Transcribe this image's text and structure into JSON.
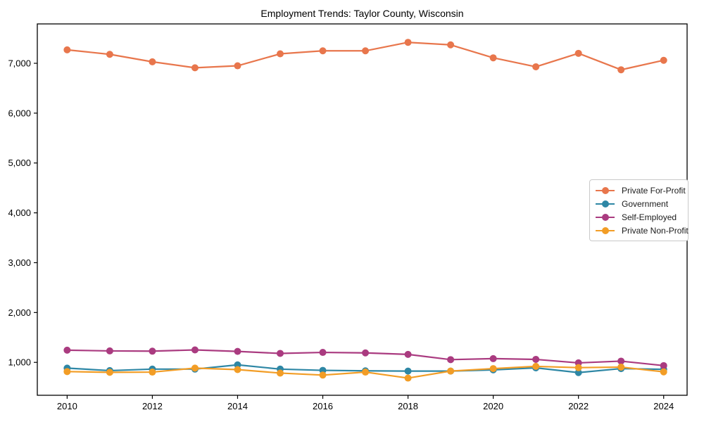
{
  "title": "Employment Trends: Taylor County, Wisconsin",
  "chart_data": {
    "type": "line",
    "title": "Employment Trends: Taylor County, Wisconsin",
    "xlabel": "",
    "ylabel": "",
    "grid": false,
    "legend_position": "center right",
    "x": [
      2010,
      2011,
      2012,
      2013,
      2014,
      2015,
      2016,
      2017,
      2018,
      2019,
      2020,
      2021,
      2022,
      2023,
      2024
    ],
    "xtick_labels": [
      "2010",
      "2012",
      "2014",
      "2016",
      "2018",
      "2020",
      "2022",
      "2024"
    ],
    "xticks": [
      2010,
      2012,
      2014,
      2016,
      2018,
      2020,
      2022,
      2024
    ],
    "ytick_labels": [
      "1,000",
      "2,000",
      "3,000",
      "4,000",
      "5,000",
      "6,000",
      "7,000"
    ],
    "yticks": [
      1000,
      2000,
      3000,
      4000,
      5000,
      6000,
      7000
    ],
    "ylim": [
      340,
      7790
    ],
    "xlim": [
      2009.3,
      2024.55
    ],
    "series": [
      {
        "name": "Private For-Profit",
        "color": "#e8764c",
        "values": [
          7270,
          7180,
          7030,
          6910,
          6950,
          7190,
          7250,
          7250,
          7420,
          7370,
          7110,
          6930,
          7200,
          6870,
          7060
        ]
      },
      {
        "name": "Government",
        "color": "#2e87a5",
        "values": [
          885,
          835,
          865,
          865,
          950,
          865,
          840,
          830,
          825,
          825,
          850,
          890,
          795,
          875,
          860
        ]
      },
      {
        "name": "Self-Employed",
        "color": "#aa3b80",
        "values": [
          1245,
          1230,
          1225,
          1250,
          1220,
          1180,
          1200,
          1190,
          1160,
          1055,
          1075,
          1060,
          990,
          1025,
          935
        ]
      },
      {
        "name": "Private Non-Profit",
        "color": "#f29d26",
        "values": [
          815,
          800,
          805,
          885,
          855,
          785,
          745,
          805,
          685,
          825,
          875,
          920,
          895,
          905,
          810
        ]
      }
    ],
    "axis_color": "#000000",
    "background_color": "#ffffff"
  }
}
